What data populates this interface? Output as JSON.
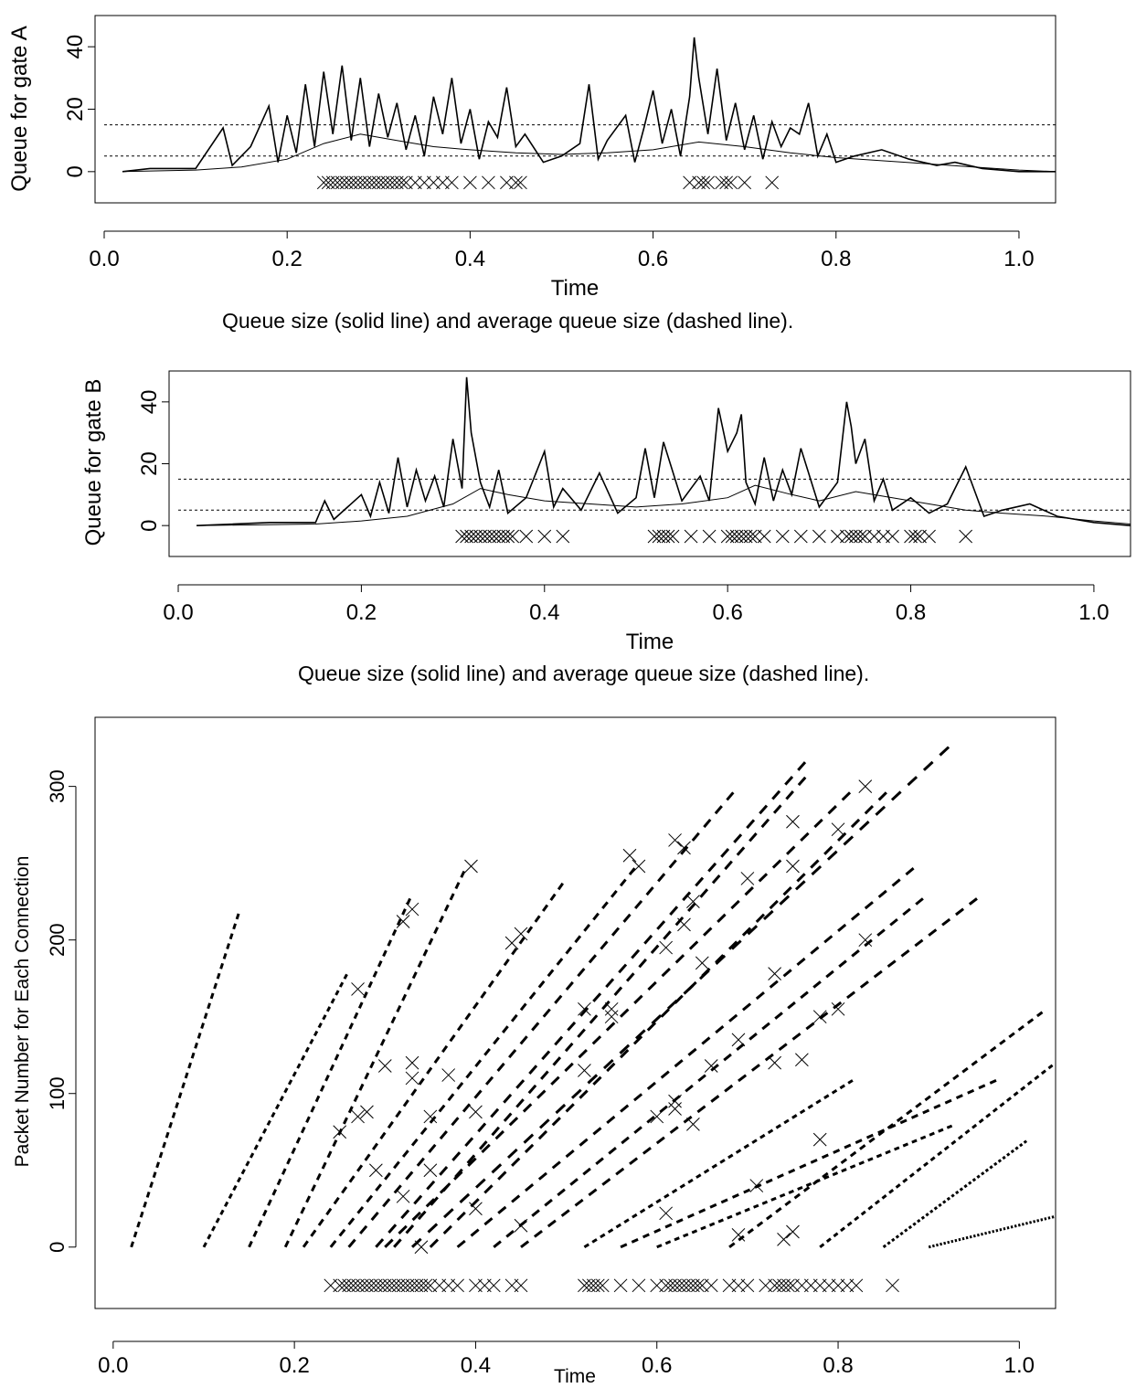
{
  "chart_data": [
    {
      "id": "gateA",
      "type": "line",
      "xlabel": "Time",
      "ylabel": "Queue for gate A",
      "caption": "Queue size (solid line) and average queue size (dashed line).",
      "xlim": [
        -0.01,
        1.04
      ],
      "ylim": [
        -10,
        50
      ],
      "xticks": [
        0.0,
        0.2,
        0.4,
        0.6,
        0.8,
        1.0
      ],
      "xtick_labels": [
        "0.0",
        "0.2",
        "0.4",
        "0.6",
        "0.8",
        "1.0"
      ],
      "yticks": [
        0,
        20,
        40
      ],
      "ytick_labels": [
        "0",
        "20",
        "40"
      ],
      "thresholds": [
        5,
        15
      ],
      "series": [
        {
          "role": "queue",
          "style": "solid",
          "x": [
            0.02,
            0.05,
            0.1,
            0.13,
            0.14,
            0.16,
            0.18,
            0.19,
            0.2,
            0.21,
            0.22,
            0.23,
            0.24,
            0.25,
            0.26,
            0.27,
            0.28,
            0.29,
            0.3,
            0.31,
            0.32,
            0.33,
            0.34,
            0.35,
            0.36,
            0.37,
            0.38,
            0.39,
            0.4,
            0.41,
            0.42,
            0.43,
            0.44,
            0.45,
            0.46,
            0.48,
            0.5,
            0.52,
            0.53,
            0.54,
            0.55,
            0.57,
            0.58,
            0.59,
            0.6,
            0.61,
            0.62,
            0.63,
            0.64,
            0.645,
            0.65,
            0.66,
            0.67,
            0.68,
            0.69,
            0.7,
            0.71,
            0.72,
            0.73,
            0.74,
            0.75,
            0.76,
            0.77,
            0.78,
            0.79,
            0.8,
            0.82,
            0.85,
            0.88,
            0.91,
            0.93,
            0.96,
            1.0,
            1.04
          ],
          "y": [
            0,
            1,
            1,
            14,
            2,
            8,
            21,
            3,
            18,
            6,
            28,
            8,
            32,
            12,
            34,
            10,
            30,
            8,
            25,
            11,
            22,
            7,
            18,
            5,
            24,
            12,
            30,
            9,
            20,
            4,
            16,
            11,
            27,
            8,
            12,
            3,
            5,
            9,
            28,
            4,
            10,
            18,
            3,
            14,
            26,
            9,
            20,
            5,
            24,
            43,
            30,
            12,
            33,
            10,
            22,
            7,
            18,
            4,
            16,
            8,
            14,
            12,
            22,
            5,
            12,
            3,
            5,
            7,
            4,
            2,
            3,
            1,
            0,
            0
          ]
        },
        {
          "role": "average",
          "style": "solid-thin",
          "x": [
            0.02,
            0.1,
            0.15,
            0.2,
            0.24,
            0.28,
            0.32,
            0.36,
            0.4,
            0.45,
            0.5,
            0.55,
            0.6,
            0.65,
            0.7,
            0.75,
            0.8,
            0.85,
            0.9,
            0.95,
            1.0,
            1.04
          ],
          "y": [
            0,
            0.5,
            1.5,
            4,
            9,
            12,
            10,
            8,
            7,
            6,
            5.5,
            6,
            7,
            9.5,
            8,
            6,
            4.5,
            3.5,
            2.5,
            1.5,
            0.5,
            0
          ]
        }
      ],
      "drop_marks": [
        0.24,
        0.245,
        0.25,
        0.255,
        0.26,
        0.265,
        0.27,
        0.275,
        0.28,
        0.285,
        0.29,
        0.295,
        0.3,
        0.305,
        0.31,
        0.315,
        0.32,
        0.325,
        0.33,
        0.34,
        0.35,
        0.36,
        0.37,
        0.38,
        0.4,
        0.42,
        0.44,
        0.45,
        0.455,
        0.64,
        0.65,
        0.655,
        0.66,
        0.675,
        0.68,
        0.685,
        0.7,
        0.73
      ]
    },
    {
      "id": "gateB",
      "type": "line",
      "xlabel": "Time",
      "ylabel": "Queue for gate B",
      "caption": "Queue size (solid line) and average queue size (dashed line).",
      "xlim": [
        -0.01,
        1.04
      ],
      "ylim": [
        -10,
        50
      ],
      "xticks": [
        0.0,
        0.2,
        0.4,
        0.6,
        0.8,
        1.0
      ],
      "xtick_labels": [
        "0.0",
        "0.2",
        "0.4",
        "0.6",
        "0.8",
        "1.0"
      ],
      "yticks": [
        0,
        20,
        40
      ],
      "ytick_labels": [
        "0",
        "20",
        "40"
      ],
      "thresholds": [
        5,
        15
      ],
      "series": [
        {
          "role": "queue",
          "style": "solid",
          "x": [
            0.02,
            0.1,
            0.15,
            0.16,
            0.17,
            0.2,
            0.21,
            0.22,
            0.23,
            0.24,
            0.25,
            0.26,
            0.27,
            0.28,
            0.29,
            0.3,
            0.31,
            0.315,
            0.32,
            0.33,
            0.34,
            0.35,
            0.36,
            0.38,
            0.4,
            0.41,
            0.42,
            0.44,
            0.46,
            0.48,
            0.5,
            0.51,
            0.52,
            0.53,
            0.55,
            0.57,
            0.58,
            0.59,
            0.6,
            0.61,
            0.615,
            0.62,
            0.63,
            0.64,
            0.65,
            0.66,
            0.67,
            0.68,
            0.7,
            0.72,
            0.73,
            0.735,
            0.74,
            0.75,
            0.76,
            0.77,
            0.78,
            0.8,
            0.82,
            0.84,
            0.86,
            0.88,
            0.9,
            0.93,
            0.96,
            1.0,
            1.04
          ],
          "y": [
            0,
            1,
            1,
            8,
            2,
            10,
            3,
            14,
            4,
            22,
            6,
            18,
            8,
            16,
            6,
            28,
            12,
            48,
            30,
            14,
            6,
            18,
            4,
            9,
            24,
            6,
            12,
            5,
            17,
            4,
            9,
            25,
            9,
            27,
            8,
            16,
            8,
            38,
            24,
            30,
            36,
            14,
            7,
            22,
            8,
            18,
            10,
            25,
            6,
            14,
            40,
            32,
            20,
            28,
            8,
            15,
            5,
            9,
            4,
            7,
            19,
            3,
            5,
            7,
            3,
            1,
            0
          ]
        },
        {
          "role": "average",
          "style": "solid-thin",
          "x": [
            0.02,
            0.15,
            0.2,
            0.25,
            0.3,
            0.33,
            0.36,
            0.4,
            0.45,
            0.5,
            0.55,
            0.6,
            0.63,
            0.67,
            0.7,
            0.74,
            0.78,
            0.82,
            0.86,
            0.9,
            0.95,
            1.0,
            1.04
          ],
          "y": [
            0,
            0.5,
            1.5,
            3,
            7,
            12,
            10,
            8,
            7,
            6,
            7,
            9,
            13,
            10,
            8,
            11,
            9,
            7,
            5,
            4,
            3,
            1.5,
            0.5
          ]
        }
      ],
      "drop_marks": [
        0.31,
        0.315,
        0.32,
        0.325,
        0.33,
        0.335,
        0.34,
        0.345,
        0.35,
        0.355,
        0.36,
        0.365,
        0.38,
        0.4,
        0.42,
        0.52,
        0.525,
        0.53,
        0.535,
        0.54,
        0.56,
        0.58,
        0.6,
        0.605,
        0.61,
        0.615,
        0.62,
        0.625,
        0.63,
        0.64,
        0.66,
        0.68,
        0.7,
        0.72,
        0.73,
        0.735,
        0.74,
        0.745,
        0.75,
        0.76,
        0.77,
        0.78,
        0.8,
        0.805,
        0.81,
        0.82,
        0.86
      ]
    },
    {
      "id": "packets",
      "type": "scatter",
      "xlabel": "Time",
      "ylabel": "Packet Number for Each Connection",
      "xlim": [
        -0.02,
        1.04
      ],
      "ylim": [
        -40,
        345
      ],
      "xticks": [
        0.0,
        0.2,
        0.4,
        0.6,
        0.8,
        1.0
      ],
      "xtick_labels": [
        "0.0",
        "0.2",
        "0.4",
        "0.6",
        "0.8",
        "1.0"
      ],
      "yticks": [
        0,
        100,
        200,
        300
      ],
      "ytick_labels": [
        "0",
        "100",
        "200",
        "300"
      ],
      "connections": [
        {
          "x": [
            0.02,
            0.14
          ],
          "y": [
            0,
            220
          ]
        },
        {
          "x": [
            0.1,
            0.26
          ],
          "y": [
            0,
            180
          ]
        },
        {
          "x": [
            0.15,
            0.33
          ],
          "y": [
            0,
            230
          ]
        },
        {
          "x": [
            0.19,
            0.39
          ],
          "y": [
            0,
            248
          ]
        },
        {
          "x": [
            0.21,
            0.5
          ],
          "y": [
            0,
            240
          ]
        },
        {
          "x": [
            0.24,
            0.58
          ],
          "y": [
            0,
            250
          ]
        },
        {
          "x": [
            0.26,
            0.69
          ],
          "y": [
            0,
            300
          ]
        },
        {
          "x": [
            0.29,
            0.77
          ],
          "y": [
            0,
            320
          ]
        },
        {
          "x": [
            0.3,
            0.82
          ],
          "y": [
            0,
            300
          ]
        },
        {
          "x": [
            0.31,
            0.77
          ],
          "y": [
            0,
            310
          ]
        },
        {
          "x": [
            0.33,
            0.93
          ],
          "y": [
            0,
            330
          ]
        },
        {
          "x": [
            0.35,
            0.86
          ],
          "y": [
            0,
            300
          ]
        },
        {
          "x": [
            0.38,
            0.89
          ],
          "y": [
            0,
            250
          ]
        },
        {
          "x": [
            0.42,
            0.9
          ],
          "y": [
            0,
            230
          ]
        },
        {
          "x": [
            0.45,
            0.96
          ],
          "y": [
            0,
            230
          ]
        },
        {
          "x": [
            0.52,
            0.82
          ],
          "y": [
            0,
            110
          ]
        },
        {
          "x": [
            0.56,
            0.98
          ],
          "y": [
            0,
            110
          ]
        },
        {
          "x": [
            0.6,
            0.93
          ],
          "y": [
            0,
            80
          ]
        },
        {
          "x": [
            0.68,
            1.03
          ],
          "y": [
            0,
            155
          ]
        },
        {
          "x": [
            0.78,
            1.04
          ],
          "y": [
            0,
            120
          ]
        },
        {
          "x": [
            0.85,
            1.01
          ],
          "y": [
            0,
            70
          ]
        },
        {
          "x": [
            0.9,
            1.04
          ],
          "y": [
            0,
            20
          ]
        }
      ],
      "drop_marks": [
        [
          0.27,
          168
        ],
        [
          0.32,
          212
        ],
        [
          0.33,
          220
        ],
        [
          0.395,
          248
        ],
        [
          0.27,
          85
        ],
        [
          0.3,
          118
        ],
        [
          0.33,
          110
        ],
        [
          0.35,
          85
        ],
        [
          0.44,
          198
        ],
        [
          0.45,
          204
        ],
        [
          0.52,
          155
        ],
        [
          0.55,
          150
        ],
        [
          0.57,
          255
        ],
        [
          0.58,
          248
        ],
        [
          0.62,
          265
        ],
        [
          0.63,
          260
        ],
        [
          0.64,
          225
        ],
        [
          0.63,
          210
        ],
        [
          0.61,
          195
        ],
        [
          0.65,
          185
        ],
        [
          0.64,
          80
        ],
        [
          0.62,
          95
        ],
        [
          0.66,
          118
        ],
        [
          0.69,
          135
        ],
        [
          0.7,
          240
        ],
        [
          0.73,
          178
        ],
        [
          0.75,
          277
        ],
        [
          0.75,
          248
        ],
        [
          0.8,
          272
        ],
        [
          0.83,
          300
        ],
        [
          0.78,
          150
        ],
        [
          0.78,
          70
        ],
        [
          0.8,
          155
        ],
        [
          0.83,
          200
        ],
        [
          0.71,
          40
        ],
        [
          0.75,
          10
        ],
        [
          0.74,
          5
        ],
        [
          0.69,
          8
        ],
        [
          0.61,
          22
        ],
        [
          0.52,
          115
        ],
        [
          0.45,
          14
        ],
        [
          0.4,
          25
        ],
        [
          0.34,
          0
        ],
        [
          0.37,
          112
        ],
        [
          0.4,
          88
        ],
        [
          0.29,
          50
        ],
        [
          0.28,
          88
        ],
        [
          0.32,
          33
        ],
        [
          0.33,
          120
        ],
        [
          0.35,
          50
        ],
        [
          0.25,
          75
        ],
        [
          0.55,
          155
        ],
        [
          0.62,
          90
        ],
        [
          0.73,
          120
        ],
        [
          0.76,
          122
        ],
        [
          0.6,
          85
        ]
      ],
      "drop_row": [
        0.24,
        0.25,
        0.255,
        0.26,
        0.265,
        0.27,
        0.275,
        0.28,
        0.285,
        0.29,
        0.295,
        0.3,
        0.305,
        0.31,
        0.315,
        0.32,
        0.325,
        0.33,
        0.335,
        0.34,
        0.345,
        0.35,
        0.36,
        0.37,
        0.38,
        0.4,
        0.41,
        0.42,
        0.44,
        0.45,
        0.52,
        0.525,
        0.53,
        0.535,
        0.54,
        0.56,
        0.58,
        0.6,
        0.61,
        0.615,
        0.62,
        0.625,
        0.63,
        0.635,
        0.64,
        0.645,
        0.65,
        0.66,
        0.68,
        0.69,
        0.7,
        0.72,
        0.73,
        0.735,
        0.74,
        0.745,
        0.75,
        0.76,
        0.77,
        0.78,
        0.79,
        0.8,
        0.81,
        0.82,
        0.86
      ]
    }
  ]
}
